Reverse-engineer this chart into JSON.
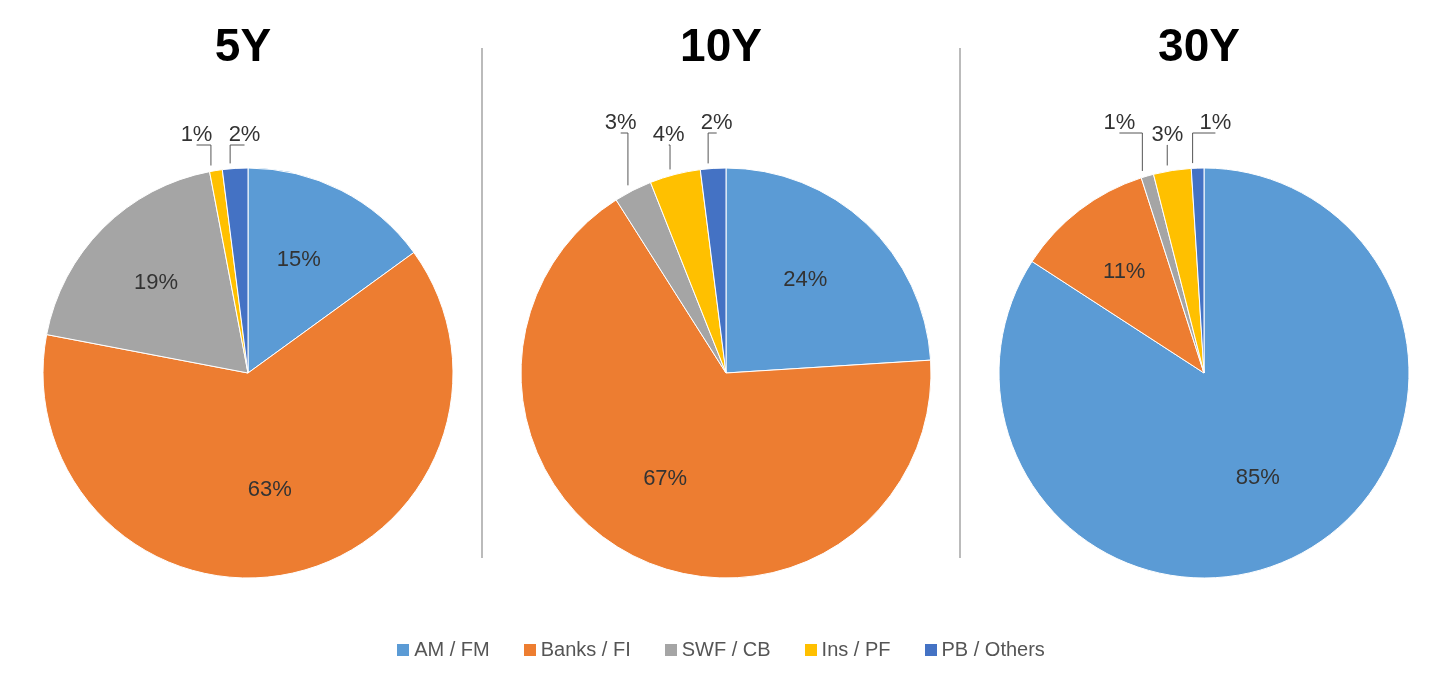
{
  "chart_data": [
    {
      "type": "pie",
      "title": "5Y",
      "categories": [
        "AM / FM",
        "Banks / FI",
        "SWF / CB",
        "Ins / PF",
        "PB / Others"
      ],
      "values": [
        15,
        63,
        19,
        1,
        2
      ],
      "value_labels": [
        "15%",
        "63%",
        "19%",
        "1%",
        "2%"
      ],
      "colors": [
        "#5b9bd5",
        "#ed7d31",
        "#a5a5a5",
        "#ffc000",
        "#4472c4"
      ],
      "legend": "bottom"
    },
    {
      "type": "pie",
      "title": "10Y",
      "values": [
        24,
        67,
        3,
        4,
        2
      ],
      "value_labels": [
        "24%",
        "67%",
        "3%",
        "4%",
        "2%"
      ],
      "colors": [
        "#5b9bd5",
        "#ed7d31",
        "#a5a5a5",
        "#ffc000",
        "#4472c4"
      ]
    },
    {
      "type": "pie",
      "title": "30Y",
      "values": [
        85,
        11,
        1,
        3,
        1
      ],
      "value_labels": [
        "85%",
        "11%",
        "1%",
        "3%",
        "1%"
      ],
      "colors": [
        "#5b9bd5",
        "#ed7d31",
        "#a5a5a5",
        "#ffc000",
        "#4472c4"
      ]
    }
  ]
}
